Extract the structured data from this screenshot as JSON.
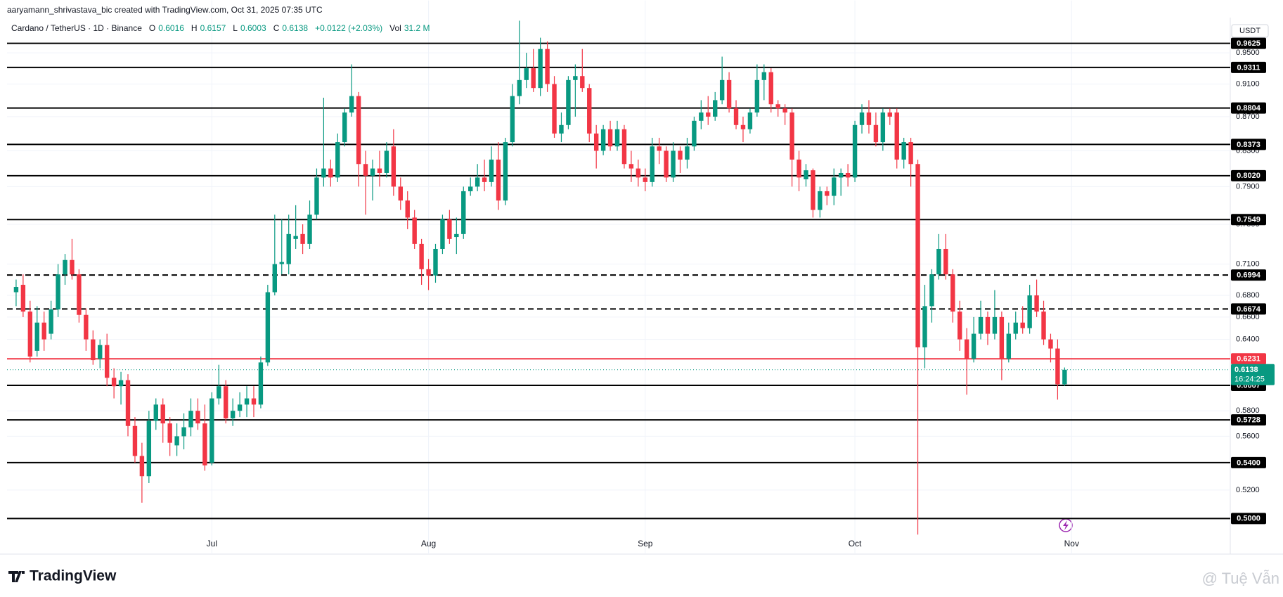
{
  "header": {
    "attribution": "aaryamann_shrivastava_bic created with TradingView.com, Oct 31, 2025 07:35 UTC"
  },
  "legend": {
    "symbol": "Cardano / TetherUS · 1D · Binance",
    "open": {
      "label": "O",
      "value": 0.6016
    },
    "high": {
      "label": "H",
      "value": 0.6157
    },
    "low": {
      "label": "L",
      "value": 0.6003
    },
    "close": {
      "label": "C",
      "value": 0.6138
    },
    "change": "+0.0122 (+2.03%)",
    "volume": {
      "label": "Vol",
      "value": "31.2 M"
    }
  },
  "chart_data": {
    "type": "candlestick",
    "currency": "USDT",
    "log_scale": true,
    "up_color": "#089981",
    "down_color": "#f23645",
    "categories": [
      null,
      null,
      null,
      null,
      null,
      null,
      null,
      null,
      null,
      null,
      null,
      null,
      null,
      null,
      null,
      null,
      null,
      null,
      null,
      null,
      null,
      null,
      null,
      null,
      null,
      null,
      null,
      null,
      "Jul",
      null,
      null,
      null,
      null,
      null,
      null,
      null,
      null,
      null,
      null,
      null,
      null,
      null,
      null,
      null,
      null,
      null,
      null,
      null,
      null,
      null,
      null,
      null,
      null,
      null,
      null,
      null,
      null,
      null,
      null,
      "Aug",
      null,
      null,
      null,
      null,
      null,
      null,
      null,
      null,
      null,
      null,
      null,
      null,
      null,
      null,
      null,
      null,
      null,
      null,
      null,
      null,
      null,
      null,
      null,
      null,
      null,
      null,
      null,
      null,
      null,
      null,
      "Sep",
      null,
      null,
      null,
      null,
      null,
      null,
      null,
      null,
      null,
      null,
      null,
      null,
      null,
      null,
      null,
      null,
      null,
      null,
      null,
      null,
      null,
      null,
      null,
      null,
      null,
      null,
      null,
      null,
      null,
      "Oct",
      null,
      null,
      null,
      null,
      null,
      null,
      null,
      null,
      null,
      null,
      null,
      null,
      null,
      null,
      null,
      null,
      null,
      null,
      null,
      null,
      null,
      null,
      null,
      null,
      null,
      null,
      null,
      null,
      null,
      null,
      "Nov"
    ],
    "ohlc": [
      [
        0.683,
        0.695,
        0.67,
        0.688
      ],
      [
        0.69,
        0.7,
        0.66,
        0.665
      ],
      [
        0.665,
        0.675,
        0.62,
        0.625
      ],
      [
        0.63,
        0.67,
        0.625,
        0.655
      ],
      [
        0.655,
        0.665,
        0.63,
        0.64
      ],
      [
        0.645,
        0.675,
        0.64,
        0.667
      ],
      [
        0.667,
        0.71,
        0.66,
        0.7
      ],
      [
        0.7,
        0.72,
        0.69,
        0.714
      ],
      [
        0.714,
        0.735,
        0.695,
        0.7
      ],
      [
        0.7,
        0.705,
        0.655,
        0.662
      ],
      [
        0.662,
        0.668,
        0.63,
        0.64
      ],
      [
        0.64,
        0.648,
        0.618,
        0.622
      ],
      [
        0.623,
        0.64,
        0.615,
        0.635
      ],
      [
        0.635,
        0.645,
        0.6,
        0.607
      ],
      [
        0.607,
        0.615,
        0.59,
        0.6
      ],
      [
        0.6,
        0.612,
        0.585,
        0.605
      ],
      [
        0.605,
        0.61,
        0.56,
        0.568
      ],
      [
        0.568,
        0.575,
        0.54,
        0.545
      ],
      [
        0.545,
        0.555,
        0.511,
        0.53
      ],
      [
        0.53,
        0.58,
        0.525,
        0.572
      ],
      [
        0.572,
        0.59,
        0.565,
        0.585
      ],
      [
        0.585,
        0.59,
        0.555,
        0.57
      ],
      [
        0.57,
        0.575,
        0.545,
        0.555
      ],
      [
        0.553,
        0.57,
        0.545,
        0.56
      ],
      [
        0.56,
        0.578,
        0.55,
        0.567
      ],
      [
        0.567,
        0.59,
        0.56,
        0.58
      ],
      [
        0.58,
        0.59,
        0.565,
        0.57
      ],
      [
        0.57,
        0.585,
        0.534,
        0.538
      ],
      [
        0.54,
        0.595,
        0.538,
        0.59
      ],
      [
        0.59,
        0.618,
        0.585,
        0.6
      ],
      [
        0.6,
        0.605,
        0.57,
        0.574
      ],
      [
        0.574,
        0.59,
        0.568,
        0.58
      ],
      [
        0.58,
        0.595,
        0.575,
        0.585
      ],
      [
        0.585,
        0.6,
        0.575,
        0.59
      ],
      [
        0.59,
        0.6,
        0.575,
        0.585
      ],
      [
        0.585,
        0.625,
        0.582,
        0.62
      ],
      [
        0.62,
        0.69,
        0.617,
        0.683
      ],
      [
        0.683,
        0.76,
        0.68,
        0.71
      ],
      [
        0.71,
        0.755,
        0.7,
        0.712
      ],
      [
        0.71,
        0.76,
        0.7,
        0.74
      ],
      [
        0.735,
        0.77,
        0.725,
        0.738
      ],
      [
        0.74,
        0.75,
        0.72,
        0.73
      ],
      [
        0.73,
        0.775,
        0.725,
        0.76
      ],
      [
        0.76,
        0.81,
        0.755,
        0.8
      ],
      [
        0.8,
        0.893,
        0.79,
        0.81
      ],
      [
        0.81,
        0.82,
        0.79,
        0.8
      ],
      [
        0.8,
        0.85,
        0.795,
        0.84
      ],
      [
        0.84,
        0.88,
        0.835,
        0.875
      ],
      [
        0.875,
        0.935,
        0.87,
        0.895
      ],
      [
        0.895,
        0.9,
        0.79,
        0.815
      ],
      [
        0.815,
        0.83,
        0.76,
        0.802
      ],
      [
        0.802,
        0.82,
        0.775,
        0.81
      ],
      [
        0.81,
        0.83,
        0.79,
        0.805
      ],
      [
        0.805,
        0.84,
        0.8,
        0.83
      ],
      [
        0.835,
        0.855,
        0.78,
        0.79
      ],
      [
        0.79,
        0.8,
        0.765,
        0.775
      ],
      [
        0.775,
        0.785,
        0.745,
        0.757
      ],
      [
        0.757,
        0.765,
        0.725,
        0.73
      ],
      [
        0.73,
        0.735,
        0.69,
        0.705
      ],
      [
        0.705,
        0.715,
        0.685,
        0.699
      ],
      [
        0.699,
        0.73,
        0.692,
        0.725
      ],
      [
        0.725,
        0.76,
        0.72,
        0.755
      ],
      [
        0.755,
        0.765,
        0.73,
        0.735
      ],
      [
        0.737,
        0.757,
        0.72,
        0.74
      ],
      [
        0.74,
        0.79,
        0.735,
        0.785
      ],
      [
        0.785,
        0.8,
        0.78,
        0.79
      ],
      [
        0.79,
        0.815,
        0.785,
        0.8
      ],
      [
        0.8,
        0.82,
        0.785,
        0.795
      ],
      [
        0.795,
        0.835,
        0.79,
        0.82
      ],
      [
        0.82,
        0.84,
        0.765,
        0.775
      ],
      [
        0.775,
        0.845,
        0.77,
        0.84
      ],
      [
        0.84,
        0.91,
        0.835,
        0.895
      ],
      [
        0.895,
        0.993,
        0.885,
        0.915
      ],
      [
        0.915,
        0.95,
        0.905,
        0.93
      ],
      [
        0.93,
        0.955,
        0.9,
        0.905
      ],
      [
        0.905,
        0.97,
        0.895,
        0.955
      ],
      [
        0.955,
        0.965,
        0.9,
        0.91
      ],
      [
        0.91,
        0.92,
        0.845,
        0.85
      ],
      [
        0.85,
        0.875,
        0.84,
        0.86
      ],
      [
        0.86,
        0.92,
        0.855,
        0.915
      ],
      [
        0.915,
        0.935,
        0.87,
        0.92
      ],
      [
        0.92,
        0.955,
        0.9,
        0.905
      ],
      [
        0.905,
        0.91,
        0.84,
        0.85
      ],
      [
        0.85,
        0.86,
        0.81,
        0.83
      ],
      [
        0.83,
        0.86,
        0.825,
        0.855
      ],
      [
        0.855,
        0.865,
        0.83,
        0.835
      ],
      [
        0.835,
        0.865,
        0.83,
        0.855
      ],
      [
        0.855,
        0.86,
        0.81,
        0.815
      ],
      [
        0.815,
        0.83,
        0.795,
        0.81
      ],
      [
        0.81,
        0.82,
        0.79,
        0.8
      ],
      [
        0.8,
        0.81,
        0.785,
        0.795
      ],
      [
        0.795,
        0.845,
        0.79,
        0.835
      ],
      [
        0.835,
        0.845,
        0.815,
        0.83
      ],
      [
        0.83,
        0.835,
        0.795,
        0.8
      ],
      [
        0.8,
        0.84,
        0.795,
        0.83
      ],
      [
        0.83,
        0.835,
        0.805,
        0.82
      ],
      [
        0.82,
        0.845,
        0.81,
        0.835
      ],
      [
        0.835,
        0.87,
        0.83,
        0.865
      ],
      [
        0.865,
        0.89,
        0.855,
        0.875
      ],
      [
        0.875,
        0.895,
        0.86,
        0.87
      ],
      [
        0.87,
        0.9,
        0.865,
        0.89
      ],
      [
        0.89,
        0.945,
        0.885,
        0.915
      ],
      [
        0.915,
        0.925,
        0.875,
        0.88
      ],
      [
        0.88,
        0.89,
        0.855,
        0.86
      ],
      [
        0.86,
        0.87,
        0.84,
        0.855
      ],
      [
        0.855,
        0.88,
        0.85,
        0.875
      ],
      [
        0.875,
        0.935,
        0.87,
        0.915
      ],
      [
        0.915,
        0.935,
        0.89,
        0.925
      ],
      [
        0.925,
        0.93,
        0.875,
        0.885
      ],
      [
        0.885,
        0.89,
        0.87,
        0.88
      ],
      [
        0.88,
        0.885,
        0.86,
        0.875
      ],
      [
        0.875,
        0.88,
        0.79,
        0.82
      ],
      [
        0.82,
        0.83,
        0.785,
        0.8
      ],
      [
        0.798,
        0.815,
        0.79,
        0.808
      ],
      [
        0.808,
        0.81,
        0.757,
        0.765
      ],
      [
        0.765,
        0.79,
        0.757,
        0.785
      ],
      [
        0.785,
        0.79,
        0.77,
        0.78
      ],
      [
        0.78,
        0.81,
        0.77,
        0.8
      ],
      [
        0.8,
        0.81,
        0.78,
        0.805
      ],
      [
        0.805,
        0.815,
        0.79,
        0.8
      ],
      [
        0.8,
        0.865,
        0.795,
        0.86
      ],
      [
        0.86,
        0.885,
        0.85,
        0.875
      ],
      [
        0.875,
        0.89,
        0.85,
        0.86
      ],
      [
        0.86,
        0.875,
        0.835,
        0.84
      ],
      [
        0.84,
        0.88,
        0.83,
        0.875
      ],
      [
        0.875,
        0.88,
        0.86,
        0.87
      ],
      [
        0.875,
        0.88,
        0.81,
        0.82
      ],
      [
        0.82,
        0.845,
        0.81,
        0.84
      ],
      [
        0.84,
        0.845,
        0.79,
        0.815
      ],
      [
        0.815,
        0.82,
        0.489,
        0.633
      ],
      [
        0.633,
        0.69,
        0.615,
        0.67
      ],
      [
        0.67,
        0.705,
        0.655,
        0.7
      ],
      [
        0.7,
        0.74,
        0.695,
        0.725
      ],
      [
        0.725,
        0.74,
        0.695,
        0.7
      ],
      [
        0.7,
        0.705,
        0.655,
        0.665
      ],
      [
        0.665,
        0.675,
        0.63,
        0.64
      ],
      [
        0.64,
        0.65,
        0.593,
        0.623
      ],
      [
        0.623,
        0.66,
        0.62,
        0.645
      ],
      [
        0.645,
        0.675,
        0.64,
        0.66
      ],
      [
        0.66,
        0.665,
        0.635,
        0.645
      ],
      [
        0.645,
        0.685,
        0.64,
        0.66
      ],
      [
        0.66,
        0.665,
        0.605,
        0.623
      ],
      [
        0.623,
        0.655,
        0.62,
        0.645
      ],
      [
        0.645,
        0.665,
        0.64,
        0.655
      ],
      [
        0.655,
        0.67,
        0.645,
        0.65
      ],
      [
        0.65,
        0.69,
        0.645,
        0.68
      ],
      [
        0.68,
        0.695,
        0.66,
        0.665
      ],
      [
        0.665,
        0.675,
        0.635,
        0.64
      ],
      [
        0.64,
        0.645,
        0.62,
        0.632
      ],
      [
        0.632,
        0.64,
        0.589,
        0.6016
      ],
      [
        0.6016,
        0.6157,
        0.6003,
        0.6138
      ],
      null
    ],
    "ylim": [
      0.488,
      0.9967
    ],
    "yticks": [
      {
        "value": 0.95,
        "label": "0.9500"
      },
      {
        "value": 0.91,
        "label": "0.9100"
      },
      {
        "value": 0.87,
        "label": "0.8700"
      },
      {
        "value": 0.83,
        "label": "0.8300"
      },
      {
        "value": 0.79,
        "label": "0.7900"
      },
      {
        "value": 0.75,
        "label": "0.7500"
      },
      {
        "value": 0.71,
        "label": "0.7100"
      },
      {
        "value": 0.68,
        "label": "0.6800"
      },
      {
        "value": 0.66,
        "label": "0.6600"
      },
      {
        "value": 0.64,
        "label": "0.6400"
      },
      {
        "value": 0.58,
        "label": "0.5800"
      },
      {
        "value": 0.56,
        "label": "0.5600"
      },
      {
        "value": 0.52,
        "label": "0.5200"
      }
    ],
    "grid": true,
    "levels": [
      {
        "value": 0.9625,
        "label": "0.9625",
        "style": "solid",
        "color": "#000000"
      },
      {
        "value": 0.9311,
        "label": "0.9311",
        "style": "solid",
        "color": "#000000"
      },
      {
        "value": 0.8804,
        "label": "0.8804",
        "style": "solid",
        "color": "#000000"
      },
      {
        "value": 0.8373,
        "label": "0.8373",
        "style": "solid",
        "color": "#000000"
      },
      {
        "value": 0.802,
        "label": "0.8020",
        "style": "solid",
        "color": "#000000"
      },
      {
        "value": 0.7549,
        "label": "0.7549",
        "style": "solid",
        "color": "#000000"
      },
      {
        "value": 0.6994,
        "label": "0.6994",
        "style": "dashed",
        "color": "#000000"
      },
      {
        "value": 0.6674,
        "label": "0.6674",
        "style": "dashed",
        "color": "#000000"
      },
      {
        "value": 0.6231,
        "label": "0.6231",
        "style": "solid",
        "color": "#f23645"
      },
      {
        "value": 0.6007,
        "label": "0.6007",
        "style": "solid",
        "color": "#000000"
      },
      {
        "value": 0.5728,
        "label": "0.5728",
        "style": "solid",
        "color": "#000000"
      },
      {
        "value": 0.54,
        "label": "0.5400",
        "style": "solid",
        "color": "#000000"
      },
      {
        "value": 0.5,
        "label": "0.5000",
        "style": "solid",
        "color": "#000000"
      }
    ],
    "last_price": {
      "value": 0.6138,
      "label": "0.6138",
      "countdown": "16:24:25",
      "color": "#089981"
    }
  },
  "footer": {
    "brand": "TradingView",
    "watermark": "@ Tuệ Vẫn"
  }
}
